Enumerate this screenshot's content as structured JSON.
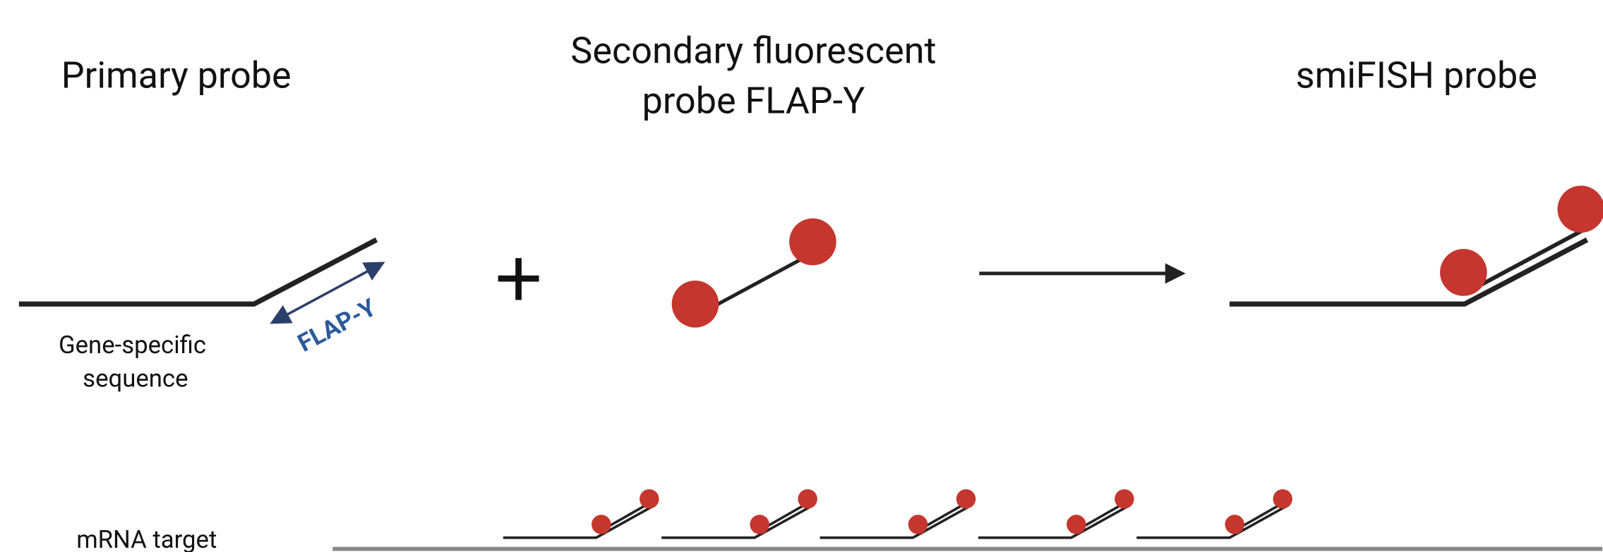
{
  "titles": {
    "primary": "Primary probe",
    "secondary": [
      "Secondary fluorescent",
      "probe FLAP-Y"
    ],
    "smifish": "smiFISH probe"
  },
  "labels": {
    "gene_specific": [
      "Gene-specific",
      "sequence"
    ],
    "flap": "FLAP-Y",
    "mrna": "mRNA target"
  }
}
